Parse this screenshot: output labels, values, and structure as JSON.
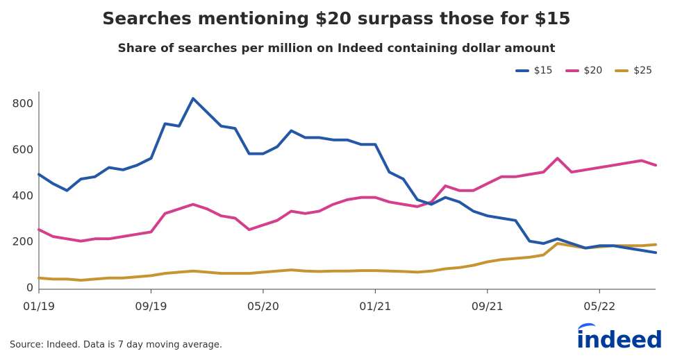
{
  "chart_data": {
    "type": "line",
    "title": "Searches mentioning $20 surpass those for $15",
    "subtitle": "Share of searches per million on Indeed containing dollar amount",
    "xlabel": "",
    "ylabel": "",
    "ylim": [
      0,
      850
    ],
    "yticks": [
      0,
      200,
      400,
      600,
      800
    ],
    "xlim": [
      "2019-01",
      "2022-09"
    ],
    "xticks": [
      "01/19",
      "09/19",
      "05/20",
      "01/21",
      "09/21",
      "05/22"
    ],
    "legend_position": "top-right",
    "grid": false,
    "x": [
      "2019-01",
      "2019-02",
      "2019-03",
      "2019-04",
      "2019-05",
      "2019-06",
      "2019-07",
      "2019-08",
      "2019-09",
      "2019-10",
      "2019-11",
      "2019-12",
      "2020-01",
      "2020-02",
      "2020-03",
      "2020-04",
      "2020-05",
      "2020-06",
      "2020-07",
      "2020-08",
      "2020-09",
      "2020-10",
      "2020-11",
      "2020-12",
      "2021-01",
      "2021-02",
      "2021-03",
      "2021-04",
      "2021-05",
      "2021-06",
      "2021-07",
      "2021-08",
      "2021-09",
      "2021-10",
      "2021-11",
      "2021-12",
      "2022-01",
      "2022-02",
      "2022-03",
      "2022-04",
      "2022-05",
      "2022-06",
      "2022-07",
      "2022-08",
      "2022-09"
    ],
    "series": [
      {
        "name": "$15",
        "color": "#2557a7",
        "values": [
          490,
          450,
          420,
          470,
          480,
          520,
          510,
          530,
          560,
          710,
          700,
          820,
          760,
          700,
          690,
          580,
          580,
          610,
          680,
          650,
          650,
          640,
          640,
          620,
          620,
          500,
          470,
          380,
          360,
          390,
          370,
          330,
          310,
          300,
          290,
          200,
          190,
          210,
          190,
          170,
          180,
          180,
          170,
          160,
          150
        ]
      },
      {
        "name": "$20",
        "color": "#d43f8d",
        "values": [
          250,
          220,
          210,
          200,
          210,
          210,
          220,
          230,
          240,
          320,
          340,
          360,
          340,
          310,
          300,
          250,
          270,
          290,
          330,
          320,
          330,
          360,
          380,
          390,
          390,
          370,
          360,
          350,
          370,
          440,
          420,
          420,
          450,
          480,
          480,
          490,
          500,
          560,
          500,
          510,
          520,
          530,
          540,
          550,
          530
        ]
      },
      {
        "name": "$25",
        "color": "#c79432",
        "values": [
          40,
          35,
          35,
          30,
          35,
          40,
          40,
          45,
          50,
          60,
          65,
          70,
          65,
          60,
          60,
          60,
          65,
          70,
          75,
          70,
          68,
          70,
          70,
          72,
          72,
          70,
          68,
          65,
          70,
          80,
          85,
          95,
          110,
          120,
          125,
          130,
          140,
          190,
          180,
          170,
          175,
          180,
          180,
          180,
          185
        ]
      }
    ]
  },
  "footer": {
    "source": "Source: Indeed. Data is 7 day moving average.",
    "logo_text": "indeed"
  }
}
